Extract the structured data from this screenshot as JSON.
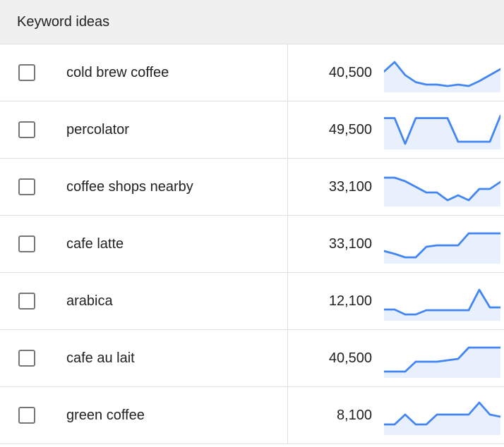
{
  "header": {
    "title": "Keyword ideas"
  },
  "colors": {
    "accent": "#4285f4",
    "spark_fill": "#e8f0fe",
    "header_bg": "#f0f0f0",
    "border": "#e0e0e0"
  },
  "table": {
    "columns": [
      "keyword",
      "monthly_searches",
      "trend"
    ],
    "rows": [
      {
        "keyword": "cold brew coffee",
        "volume": "40,500",
        "checked": false,
        "sparkline": [
          55,
          82,
          45,
          25,
          18,
          18,
          14,
          18,
          14,
          28,
          45,
          62
        ]
      },
      {
        "keyword": "percolator",
        "volume": "49,500",
        "checked": false,
        "sparkline": [
          85,
          85,
          12,
          85,
          85,
          85,
          85,
          18,
          18,
          18,
          18,
          92
        ]
      },
      {
        "keyword": "coffee shops nearby",
        "volume": "33,100",
        "checked": false,
        "sparkline": [
          78,
          78,
          68,
          52,
          36,
          36,
          14,
          28,
          14,
          46,
          46,
          66
        ]
      },
      {
        "keyword": "cafe latte",
        "volume": "33,100",
        "checked": false,
        "sparkline": [
          32,
          24,
          14,
          14,
          44,
          48,
          48,
          48,
          82,
          82,
          82,
          82
        ]
      },
      {
        "keyword": "arabica",
        "volume": "12,100",
        "checked": false,
        "sparkline": [
          28,
          28,
          14,
          14,
          26,
          26,
          26,
          26,
          26,
          84,
          34,
          34
        ]
      },
      {
        "keyword": "cafe au lait",
        "volume": "40,500",
        "checked": false,
        "sparkline": [
          14,
          14,
          14,
          42,
          42,
          42,
          46,
          50,
          82,
          82,
          82,
          82
        ]
      },
      {
        "keyword": "green coffee",
        "volume": "8,100",
        "checked": false,
        "sparkline": [
          26,
          26,
          54,
          26,
          26,
          54,
          54,
          54,
          54,
          88,
          54,
          48
        ]
      }
    ]
  },
  "chart_data": {
    "type": "line",
    "note": "monthly search trend sparklines per keyword row",
    "series_key": "table.rows[].sparkline",
    "ylim": [
      0,
      100
    ]
  }
}
